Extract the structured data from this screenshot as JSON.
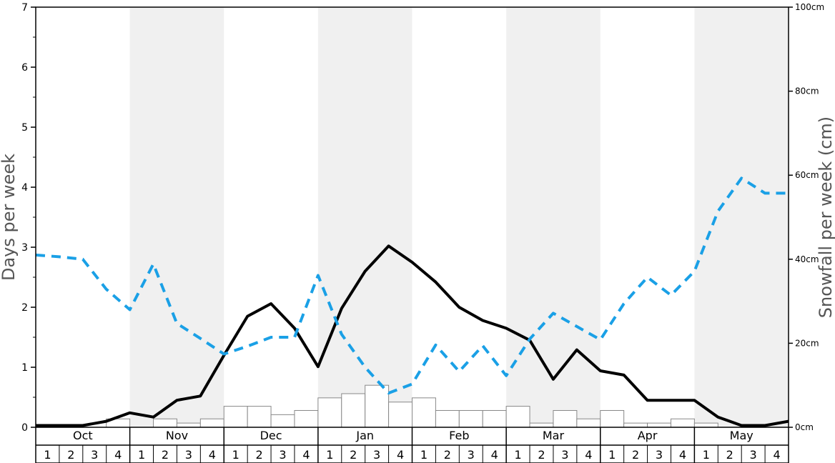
{
  "chart_data": {
    "type": "line",
    "ylabel": "Days per week",
    "y2label": "Snowfall per week (cm)",
    "ylim": [
      0,
      7
    ],
    "y2lim": [
      0,
      100
    ],
    "yticks": [
      "0",
      "1",
      "2",
      "3",
      "4",
      "5",
      "6",
      "7"
    ],
    "y2ticks": [
      "0cm",
      "20cm",
      "40cm",
      "60cm",
      "80cm",
      "100cm"
    ],
    "months": [
      "Oct",
      "Nov",
      "Dec",
      "Jan",
      "Feb",
      "Mar",
      "Apr",
      "May"
    ],
    "weeks": [
      "1",
      "2",
      "3",
      "4"
    ],
    "shaded_months": [
      "Nov",
      "Jan",
      "Mar",
      "May"
    ],
    "series": [
      {
        "style": "solid",
        "color": "#000000",
        "values": [
          0.03,
          0.03,
          0.03,
          0.1,
          0.24,
          0.17,
          0.45,
          0.52,
          1.2,
          1.85,
          2.06,
          1.65,
          1.01,
          1.98,
          2.6,
          3.02,
          2.75,
          2.42,
          2.0,
          1.78,
          1.65,
          1.45,
          0.8,
          1.29,
          0.94,
          0.87,
          0.45,
          0.45,
          0.45,
          0.17,
          0.03,
          0.03,
          0.1
        ]
      },
      {
        "style": "dashed",
        "color": "#1aa0e6",
        "values": [
          2.87,
          2.84,
          2.8,
          2.3,
          1.96,
          2.72,
          1.73,
          1.48,
          1.22,
          1.35,
          1.5,
          1.5,
          2.53,
          1.55,
          1.0,
          0.57,
          0.72,
          1.37,
          0.93,
          1.36,
          0.86,
          1.47,
          1.9,
          1.68,
          1.46,
          2.06,
          2.5,
          2.2,
          2.6,
          3.6,
          4.15,
          3.9,
          3.9
        ]
      }
    ],
    "bars": {
      "units": "cm",
      "values": [
        0,
        0,
        0,
        2,
        0,
        2,
        1,
        2,
        5,
        5,
        3,
        4,
        7,
        8,
        10,
        6,
        7,
        4,
        4,
        4,
        5,
        1,
        4,
        2,
        4,
        1,
        1,
        2,
        1,
        0,
        0,
        0
      ]
    }
  }
}
